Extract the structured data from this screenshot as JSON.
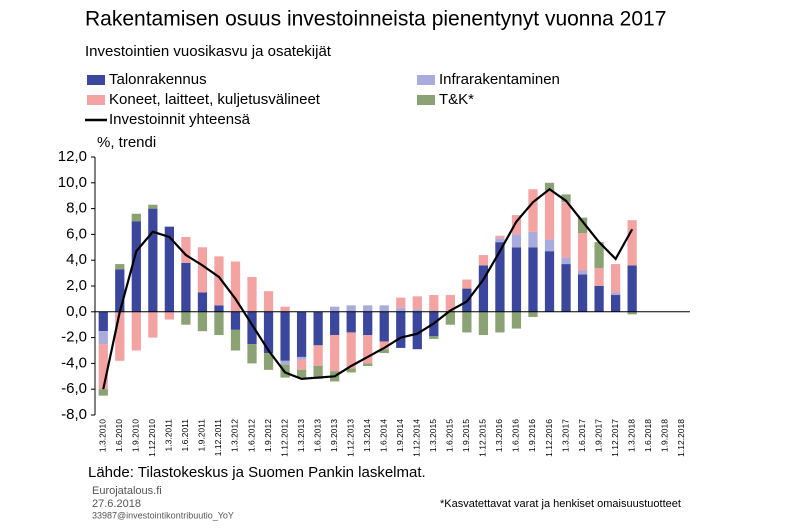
{
  "chart_data": {
    "type": "bar",
    "title": "Rakentamisen osuus investoinneista pienentynyt vuonna 2017",
    "subtitle": "Investointien vuosikasvu ja osatekijät",
    "y_label": "%, trendi",
    "source": "Lähde: Tilastokeskus ja Suomen Pankin laskelmat.",
    "site": "Eurojatalous.fi",
    "date": "27.6.2018",
    "code": "33987@investointikontribuutio_YoY",
    "footnote": "*Kasvatettavat varat ja henkiset omaisuustuotteet",
    "stacked": true,
    "categories": [
      "1.3.2010",
      "1.6.2010",
      "1.9.2010",
      "1.12.2010",
      "1.3.2011",
      "1.6.2011",
      "1.9.2011",
      "1.12.2011",
      "1.3.2012",
      "1.6.2012",
      "1.9.2012",
      "1.12.2012",
      "1.3.2013",
      "1.6.2013",
      "1.9.2013",
      "1.12.2013",
      "1.3.2014",
      "1.6.2014",
      "1.9.2014",
      "1.12.2014",
      "1.3.2015",
      "1.6.2015",
      "1.9.2015",
      "1.12.2015",
      "1.3.2016",
      "1.6.2016",
      "1.9.2016",
      "1.12.2016",
      "1.3.2017",
      "1.6.2017",
      "1.9.2017",
      "1.12.2017",
      "1.3.2018",
      "1.6.2018",
      "1.9.2018",
      "1.12.2018"
    ],
    "series": [
      {
        "name": "Talonrakennus",
        "color": "#3b479d",
        "values": [
          -1.5,
          3.3,
          7.0,
          8.0,
          6.6,
          3.8,
          1.5,
          0.5,
          -1.4,
          -2.5,
          -3.2,
          -3.8,
          -3.5,
          -2.6,
          -1.8,
          -1.6,
          -1.8,
          -2.3,
          -2.8,
          -2.9,
          -1.9,
          0.0,
          1.8,
          3.6,
          5.4,
          5.0,
          5.0,
          4.7,
          3.7,
          2.9,
          2.0,
          1.3,
          3.6,
          null,
          null,
          null
        ]
      },
      {
        "name": "Infrarakentaminen",
        "color": "#a9abdc",
        "values": [
          -1.0,
          0.0,
          0.0,
          0.0,
          0.0,
          0.0,
          0.0,
          0.0,
          0.0,
          0.0,
          0.0,
          -0.3,
          -0.2,
          0.0,
          0.4,
          0.5,
          0.5,
          0.5,
          0.3,
          0.2,
          0.1,
          0.0,
          0.0,
          0.0,
          0.3,
          1.0,
          1.2,
          0.9,
          0.5,
          0.3,
          0.0,
          0.2,
          0.0,
          null,
          null,
          null
        ]
      },
      {
        "name": "Koneet, laitteet, kuljetusvälineet",
        "color": "#f4a3a3",
        "values": [
          -3.5,
          -3.8,
          -3.0,
          -2.0,
          -0.6,
          2.0,
          3.5,
          3.8,
          3.9,
          2.7,
          1.6,
          0.4,
          -0.8,
          -1.6,
          -2.8,
          -2.8,
          -2.2,
          -0.6,
          0.8,
          1.0,
          1.2,
          1.3,
          0.7,
          0.8,
          0.2,
          1.5,
          3.3,
          3.8,
          4.3,
          2.9,
          1.4,
          2.2,
          3.5,
          null,
          null,
          null
        ]
      },
      {
        "name": "T&K*",
        "color": "#8aa274",
        "values": [
          -0.5,
          0.4,
          0.6,
          0.3,
          0.0,
          -1.0,
          -1.5,
          -1.8,
          -1.6,
          -1.5,
          -1.3,
          -1.0,
          -0.6,
          -1.0,
          -0.8,
          -0.3,
          -0.2,
          -0.3,
          0.0,
          0.0,
          -0.2,
          -1.0,
          -1.6,
          -1.8,
          -1.6,
          -1.3,
          -0.4,
          0.6,
          0.6,
          1.2,
          2.0,
          0.0,
          -0.2,
          null,
          null,
          null
        ]
      },
      {
        "name": "Investoinnit yhteensä",
        "color": "#000000",
        "type": "line",
        "values": [
          -6.0,
          0.0,
          4.7,
          6.2,
          5.8,
          4.4,
          3.6,
          2.7,
          1.0,
          -1.0,
          -3.0,
          -4.7,
          -5.2,
          -5.1,
          -5.0,
          -4.2,
          -3.5,
          -2.8,
          -2.0,
          -1.7,
          -0.9,
          0.1,
          0.8,
          2.5,
          4.7,
          7.0,
          8.5,
          9.5,
          8.6,
          7.0,
          5.4,
          4.1,
          6.4,
          null,
          null,
          null
        ]
      }
    ],
    "ylim": [
      -8,
      12
    ],
    "yticks": [
      {
        "value": -8,
        "label": "-8,0"
      },
      {
        "value": -6,
        "label": "-6,0"
      },
      {
        "value": -4,
        "label": "-4,0"
      },
      {
        "value": -2,
        "label": "-2,0"
      },
      {
        "value": 0,
        "label": "0,0"
      },
      {
        "value": 2,
        "label": "2,0"
      },
      {
        "value": 4,
        "label": "4,0"
      },
      {
        "value": 6,
        "label": "6,0"
      },
      {
        "value": 8,
        "label": "8,0"
      },
      {
        "value": 10,
        "label": "10,0"
      },
      {
        "value": 12,
        "label": "12,0"
      }
    ]
  }
}
